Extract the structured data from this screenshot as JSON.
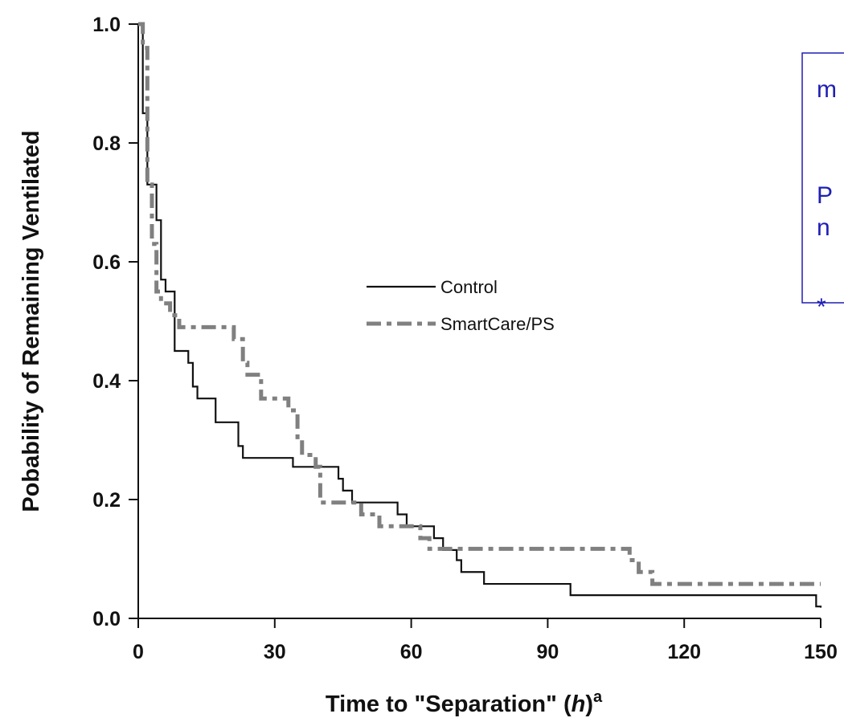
{
  "chart_data": {
    "type": "line",
    "step": true,
    "xlabel_main": "Time to \"Separation\" (",
    "xlabel_italic": "h",
    "xlabel_close": ")",
    "xlabel_superscript": "a",
    "ylabel": "Pobability of Remaining Ventilated",
    "xlim": [
      0,
      150
    ],
    "ylim": [
      0,
      1
    ],
    "x_ticks": [
      "0",
      "30",
      "60",
      "90",
      "120",
      "150"
    ],
    "y_ticks": [
      "0.0",
      "0.2",
      "0.4",
      "0.6",
      "0.8",
      "1.0"
    ],
    "grid": false,
    "legend_position": "center",
    "series": [
      {
        "name": "Control",
        "color": "#111111",
        "style": "solid",
        "points": [
          [
            0,
            1.0
          ],
          [
            1,
            0.85
          ],
          [
            2,
            0.73
          ],
          [
            4,
            0.67
          ],
          [
            5,
            0.57
          ],
          [
            6,
            0.55
          ],
          [
            8,
            0.45
          ],
          [
            11,
            0.43
          ],
          [
            12,
            0.39
          ],
          [
            13,
            0.37
          ],
          [
            17,
            0.33
          ],
          [
            22,
            0.29
          ],
          [
            23,
            0.27
          ],
          [
            34,
            0.255
          ],
          [
            41,
            0.255
          ],
          [
            44,
            0.235
          ],
          [
            45,
            0.215
          ],
          [
            47,
            0.195
          ],
          [
            57,
            0.175
          ],
          [
            59,
            0.155
          ],
          [
            65,
            0.135
          ],
          [
            67,
            0.115
          ],
          [
            70,
            0.098
          ],
          [
            71,
            0.078
          ],
          [
            76,
            0.058
          ],
          [
            95,
            0.039
          ],
          [
            149,
            0.02
          ],
          [
            150,
            0.018
          ]
        ]
      },
      {
        "name": "SmartCare/PS",
        "color": "#808080",
        "style": "dashed",
        "points": [
          [
            0,
            1.0
          ],
          [
            1,
            0.96
          ],
          [
            2,
            0.73
          ],
          [
            3,
            0.63
          ],
          [
            4,
            0.55
          ],
          [
            5,
            0.53
          ],
          [
            7,
            0.51
          ],
          [
            9,
            0.49
          ],
          [
            21,
            0.47
          ],
          [
            23,
            0.43
          ],
          [
            24,
            0.41
          ],
          [
            27,
            0.37
          ],
          [
            33,
            0.35
          ],
          [
            35,
            0.3
          ],
          [
            36,
            0.275
          ],
          [
            39,
            0.255
          ],
          [
            40,
            0.195
          ],
          [
            49,
            0.175
          ],
          [
            53,
            0.155
          ],
          [
            62,
            0.135
          ],
          [
            64,
            0.117
          ],
          [
            108,
            0.098
          ],
          [
            110,
            0.078
          ],
          [
            113,
            0.058
          ],
          [
            150,
            0.058
          ]
        ]
      }
    ]
  },
  "sidebar_box": {
    "lines": [
      "m",
      "P",
      "n",
      "*"
    ],
    "color": "#1f1fb4"
  }
}
